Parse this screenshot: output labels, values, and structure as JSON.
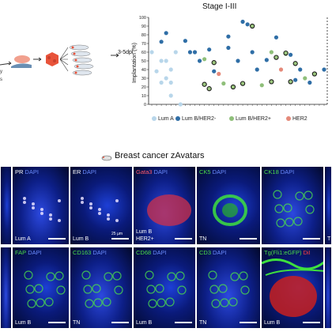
{
  "figure": {
    "chart_data": {
      "type": "scatter",
      "title": "Stage I-III",
      "ylabel": "Implantation (%)",
      "ylim": [
        0,
        100
      ],
      "yticks": [
        0,
        10,
        20,
        30,
        40,
        50,
        60,
        70,
        80,
        90,
        100
      ],
      "x_count": 37,
      "series": [
        {
          "name": "Lum A",
          "color": "#b8d6ea",
          "points": [
            [
              1,
              60
            ],
            [
              2,
              38
            ],
            [
              3,
              50
            ],
            [
              3,
              25
            ],
            [
              4,
              30
            ],
            [
              4,
              50
            ],
            [
              5,
              25
            ],
            [
              5,
              10
            ],
            [
              5,
              40
            ],
            [
              6,
              60
            ],
            [
              7,
              0
            ]
          ]
        },
        {
          "name": "Lum B/HER2-",
          "color": "#2f6ea6",
          "points": [
            [
              3,
              72
            ],
            [
              4,
              82
            ],
            [
              8,
              73
            ],
            [
              9,
              60
            ],
            [
              10,
              60
            ],
            [
              11,
              50
            ],
            [
              13,
              63
            ],
            [
              14,
              38
            ],
            [
              17,
              78
            ],
            [
              17,
              65
            ],
            [
              19,
              50
            ],
            [
              20,
              95
            ],
            [
              21,
              92
            ],
            [
              22,
              60
            ],
            [
              23,
              40
            ],
            [
              25,
              51
            ],
            [
              27,
              77
            ],
            [
              30,
              57
            ],
            [
              31,
              28
            ],
            [
              32,
              40
            ],
            [
              34,
              25
            ],
            [
              37,
              40
            ]
          ]
        },
        {
          "name": "Lum B/HER2+",
          "color": "#8fbf7a",
          "points": [
            [
              12,
              52
            ],
            [
              16,
              24
            ],
            [
              24,
              22
            ],
            [
              26,
              60
            ],
            [
              29,
              58
            ],
            [
              33,
              30
            ]
          ]
        },
        {
          "name": "HER2+",
          "color": "#e58a7a",
          "points": [
            [
              15,
              35
            ],
            [
              28,
              40
            ]
          ]
        },
        {
          "name": "TN",
          "color": "#2b2b2b",
          "points": [
            [
              12,
              23
            ],
            [
              13,
              18
            ],
            [
              14,
              48
            ],
            [
              18,
              20
            ],
            [
              20,
              24
            ],
            [
              22,
              90
            ],
            [
              26,
              26
            ],
            [
              27,
              54
            ],
            [
              29,
              59
            ],
            [
              30,
              26
            ],
            [
              31,
              47
            ],
            [
              35,
              35
            ]
          ]
        }
      ]
    },
    "arrow_label": "3-5dpi",
    "legend": [
      {
        "label": "Lum A",
        "color": "#b8d6ea"
      },
      {
        "label": "Lum B/HER2-",
        "color": "#2f6ea6"
      },
      {
        "label": "Lum B/HER2+",
        "color": "#8fbf7a"
      },
      {
        "label": "HER2",
        "color": "#e58a7a"
      }
    ],
    "section_title": "Breast cancer zAvatars",
    "panels_row1": [
      {
        "marker": "",
        "dapi": "",
        "marker_color": "#ffffff",
        "tags": [],
        "scale": ""
      },
      {
        "marker": "PR",
        "dapi": "DAPI",
        "marker_color": "#ffffff",
        "tags": [
          "Lum A"
        ],
        "scale": ""
      },
      {
        "marker": "ER",
        "dapi": "DAPI",
        "marker_color": "#ffffff",
        "tags": [
          "Lum B"
        ],
        "scale": "25 µm"
      },
      {
        "marker": "Gata3",
        "dapi": "DAPI",
        "marker_color": "#ff5a6a",
        "tags": [
          "Lum B",
          "HER2+"
        ],
        "scale": ""
      },
      {
        "marker": "CK5",
        "dapi": "DAPI",
        "marker_color": "#4bdc4b",
        "tags": [
          "TN"
        ],
        "scale": ""
      },
      {
        "marker": "CK18",
        "dapi": "DAPI",
        "marker_color": "#4bdc4b",
        "tags": [],
        "scale": ""
      },
      {
        "marker": "",
        "dapi": "",
        "marker_color": "#ffffff",
        "tags": [
          "T"
        ],
        "scale": ""
      }
    ],
    "panels_row2": [
      {
        "marker": "",
        "dapi": "",
        "marker_color": "#ffffff",
        "tags": [],
        "scale": ""
      },
      {
        "marker": "FAP",
        "dapi": "DAPI",
        "marker_color": "#4bdc4b",
        "tags": [
          "Lum B"
        ],
        "scale": ""
      },
      {
        "marker": "CD163",
        "dapi": "DAPI",
        "marker_color": "#4bdc4b",
        "tags": [
          "TN"
        ],
        "scale": ""
      },
      {
        "marker": "CD68",
        "dapi": "DAPI",
        "marker_color": "#4bdc4b",
        "tags": [
          "Lum B"
        ],
        "scale": ""
      },
      {
        "marker": "CD3",
        "dapi": "DAPI",
        "marker_color": "#4bdc4b",
        "tags": [
          "TN"
        ],
        "scale": ""
      },
      {
        "marker": "Tg(Fli1:eGFP)",
        "dapi": "DiI",
        "marker_color": "#4bdc4b",
        "tags": [
          "Lum B"
        ],
        "scale": ""
      },
      {
        "marker": "",
        "dapi": "",
        "marker_color": "#ffffff",
        "tags": [],
        "scale": ""
      }
    ]
  }
}
